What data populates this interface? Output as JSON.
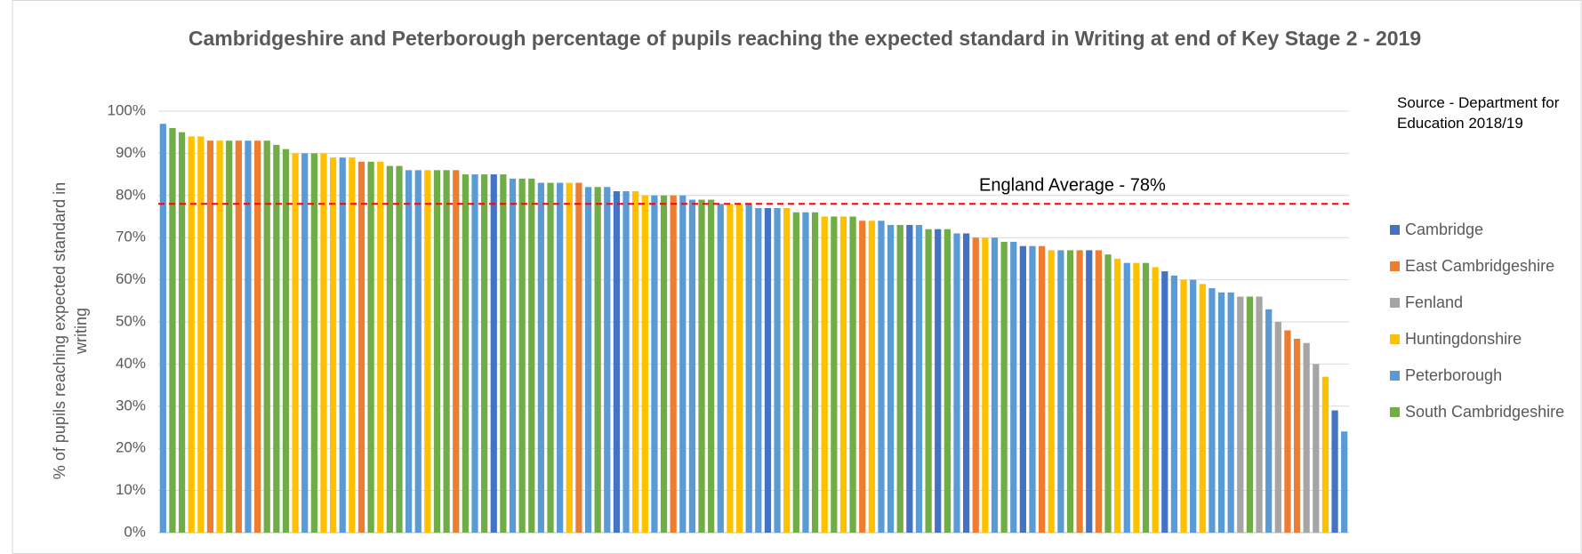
{
  "chart_data": {
    "type": "bar",
    "title": "Cambridgeshire and Peterborough percentage of pupils reaching the expected standard in Writing at end of Key Stage 2 - 2019",
    "y_label": "% of pupils reaching expected standard in writing",
    "annotation": "Source - Department for Education 2018/19",
    "reference_line": {
      "value": 78,
      "label": "England Average - 78%",
      "color": "#ff0000"
    },
    "ylim": [
      0,
      100
    ],
    "yticks": [
      {
        "value": 0,
        "label": "0%"
      },
      {
        "value": 10,
        "label": "10%"
      },
      {
        "value": 20,
        "label": "20%"
      },
      {
        "value": 30,
        "label": "30%"
      },
      {
        "value": 40,
        "label": "40%"
      },
      {
        "value": 50,
        "label": "50%"
      },
      {
        "value": 60,
        "label": "60%"
      },
      {
        "value": 70,
        "label": "70%"
      },
      {
        "value": 80,
        "label": "80%"
      },
      {
        "value": 90,
        "label": "90%"
      },
      {
        "value": 100,
        "label": "100%"
      }
    ],
    "grid": true,
    "legend": "right",
    "categories": [
      null,
      null,
      null,
      null,
      null,
      null,
      null,
      null,
      null,
      null,
      null,
      null,
      null,
      null,
      null,
      null,
      null,
      null,
      null,
      null,
      null,
      null,
      null,
      null,
      null,
      null,
      null,
      null,
      null,
      null,
      null,
      null,
      null,
      null,
      null,
      null,
      null,
      null,
      null,
      null,
      null,
      null,
      null,
      null,
      null,
      null,
      null,
      null,
      null,
      null,
      null,
      null,
      null,
      null,
      null,
      null,
      null,
      null,
      null,
      null,
      null,
      null,
      null,
      null,
      null,
      null,
      null,
      null,
      null,
      null,
      null,
      null,
      null,
      null,
      null,
      null,
      null,
      null,
      null,
      null,
      null,
      null,
      null,
      null,
      null,
      null,
      null,
      null,
      null,
      null,
      null,
      null,
      null,
      null,
      null,
      null,
      null,
      null,
      null,
      null,
      null,
      null,
      null,
      null,
      null,
      null,
      null,
      null,
      null,
      null,
      null,
      null,
      null,
      null,
      null,
      null,
      null,
      null,
      null,
      null,
      null,
      null,
      null,
      null,
      null,
      null
    ],
    "series": [
      {
        "name": "Cambridge",
        "color": "#4472c4",
        "values": [
          null,
          null,
          null,
          null,
          null,
          null,
          null,
          null,
          null,
          null,
          null,
          null,
          null,
          null,
          null,
          null,
          null,
          null,
          null,
          null,
          null,
          null,
          null,
          null,
          null,
          null,
          null,
          null,
          null,
          null,
          null,
          null,
          null,
          null,
          null,
          85,
          null,
          null,
          null,
          null,
          null,
          null,
          null,
          null,
          null,
          null,
          null,
          null,
          81,
          null,
          null,
          null,
          null,
          null,
          null,
          null,
          null,
          null,
          null,
          null,
          null,
          null,
          null,
          null,
          77,
          null,
          null,
          null,
          null,
          null,
          null,
          null,
          null,
          null,
          null,
          null,
          null,
          null,
          null,
          73,
          null,
          null,
          72,
          null,
          null,
          71,
          null,
          null,
          null,
          null,
          null,
          68,
          null,
          null,
          null,
          null,
          null,
          null,
          67,
          null,
          null,
          null,
          null,
          null,
          null,
          null,
          62,
          null,
          null,
          null,
          null,
          null,
          null,
          null,
          null,
          null,
          null,
          null,
          null,
          null,
          null,
          null,
          null,
          null,
          29,
          null
        ]
      },
      {
        "name": "East Cambridgeshire",
        "color": "#ed7d31",
        "values": [
          null,
          null,
          null,
          null,
          null,
          93,
          null,
          null,
          93,
          null,
          93,
          null,
          null,
          null,
          null,
          null,
          null,
          null,
          null,
          null,
          null,
          88,
          null,
          null,
          null,
          null,
          null,
          null,
          null,
          null,
          null,
          86,
          null,
          null,
          null,
          null,
          null,
          null,
          null,
          null,
          null,
          null,
          null,
          null,
          83,
          null,
          null,
          null,
          null,
          null,
          null,
          null,
          null,
          null,
          80,
          null,
          null,
          null,
          null,
          null,
          null,
          null,
          null,
          null,
          null,
          null,
          null,
          null,
          null,
          null,
          null,
          null,
          null,
          null,
          74,
          null,
          null,
          null,
          null,
          null,
          null,
          null,
          null,
          null,
          null,
          null,
          70,
          null,
          null,
          null,
          null,
          null,
          null,
          68,
          null,
          null,
          null,
          67,
          null,
          67,
          null,
          null,
          null,
          null,
          null,
          null,
          null,
          null,
          null,
          null,
          null,
          null,
          null,
          null,
          null,
          null,
          null,
          null,
          null,
          48,
          46,
          null,
          null,
          null,
          null,
          null
        ]
      },
      {
        "name": "Fenland",
        "color": "#a5a5a5",
        "values": [
          null,
          null,
          null,
          null,
          null,
          null,
          null,
          null,
          null,
          null,
          null,
          null,
          null,
          null,
          null,
          null,
          null,
          null,
          null,
          null,
          null,
          null,
          null,
          null,
          null,
          null,
          null,
          null,
          null,
          null,
          null,
          null,
          null,
          null,
          null,
          null,
          null,
          null,
          null,
          null,
          null,
          null,
          null,
          null,
          null,
          null,
          null,
          null,
          null,
          null,
          null,
          null,
          null,
          null,
          null,
          null,
          null,
          null,
          null,
          null,
          null,
          null,
          null,
          null,
          null,
          null,
          null,
          null,
          null,
          null,
          null,
          null,
          null,
          null,
          null,
          null,
          null,
          null,
          null,
          null,
          null,
          null,
          null,
          null,
          null,
          null,
          null,
          null,
          null,
          null,
          null,
          null,
          null,
          null,
          null,
          null,
          null,
          null,
          null,
          null,
          null,
          null,
          null,
          null,
          null,
          null,
          null,
          null,
          null,
          null,
          null,
          null,
          null,
          null,
          56,
          null,
          56,
          null,
          50,
          null,
          null,
          45,
          40,
          null,
          null,
          null
        ]
      },
      {
        "name": "Huntingdonshire",
        "color": "#ffc000",
        "values": [
          null,
          null,
          null,
          94,
          94,
          null,
          93,
          null,
          null,
          null,
          null,
          null,
          null,
          null,
          90,
          null,
          null,
          90,
          89,
          null,
          89,
          null,
          null,
          88,
          null,
          null,
          null,
          null,
          86,
          null,
          null,
          null,
          null,
          null,
          null,
          null,
          null,
          null,
          null,
          null,
          null,
          null,
          null,
          83,
          null,
          null,
          null,
          null,
          null,
          null,
          81,
          80,
          null,
          null,
          null,
          null,
          null,
          null,
          null,
          null,
          78,
          78,
          null,
          null,
          null,
          null,
          77,
          null,
          null,
          null,
          75,
          null,
          75,
          null,
          null,
          74,
          null,
          null,
          null,
          null,
          null,
          null,
          null,
          null,
          null,
          null,
          null,
          70,
          null,
          null,
          null,
          null,
          null,
          null,
          67,
          null,
          null,
          null,
          null,
          null,
          null,
          65,
          null,
          64,
          null,
          63,
          null,
          null,
          60,
          null,
          59,
          null,
          null,
          null,
          null,
          null,
          null,
          null,
          null,
          null,
          null,
          null,
          null,
          37,
          null,
          null
        ]
      },
      {
        "name": "Peterborough",
        "color": "#5b9bd5",
        "values": [
          97,
          null,
          null,
          null,
          null,
          null,
          null,
          null,
          null,
          93,
          null,
          null,
          null,
          null,
          null,
          90,
          null,
          null,
          null,
          89,
          null,
          null,
          null,
          null,
          null,
          null,
          86,
          86,
          null,
          null,
          null,
          null,
          null,
          85,
          null,
          null,
          null,
          84,
          null,
          null,
          83,
          null,
          83,
          null,
          null,
          82,
          null,
          82,
          null,
          81,
          null,
          null,
          80,
          null,
          null,
          80,
          79,
          null,
          null,
          78,
          null,
          null,
          78,
          77,
          null,
          77,
          null,
          null,
          76,
          null,
          null,
          null,
          null,
          null,
          null,
          null,
          74,
          73,
          null,
          null,
          73,
          null,
          null,
          null,
          71,
          null,
          null,
          null,
          70,
          null,
          69,
          null,
          68,
          null,
          null,
          67,
          null,
          null,
          null,
          null,
          null,
          null,
          64,
          null,
          null,
          null,
          null,
          61,
          null,
          60,
          null,
          58,
          57,
          57,
          null,
          null,
          null,
          53,
          null,
          null,
          null,
          null,
          null,
          null,
          null,
          24
        ]
      },
      {
        "name": "South Cambridgeshire",
        "color": "#70ad47",
        "values": [
          null,
          96,
          95,
          null,
          null,
          null,
          null,
          93,
          null,
          null,
          null,
          93,
          92,
          91,
          null,
          null,
          90,
          null,
          null,
          null,
          null,
          null,
          88,
          null,
          87,
          87,
          null,
          null,
          null,
          86,
          86,
          null,
          85,
          null,
          85,
          null,
          85,
          null,
          84,
          84,
          null,
          83,
          null,
          null,
          null,
          null,
          82,
          null,
          null,
          null,
          null,
          null,
          null,
          80,
          null,
          null,
          null,
          79,
          79,
          null,
          null,
          null,
          null,
          null,
          null,
          null,
          null,
          76,
          null,
          76,
          null,
          75,
          null,
          75,
          null,
          null,
          null,
          null,
          73,
          null,
          null,
          72,
          null,
          72,
          null,
          null,
          null,
          null,
          null,
          69,
          null,
          null,
          null,
          null,
          null,
          null,
          67,
          null,
          null,
          null,
          66,
          null,
          null,
          null,
          64,
          null,
          null,
          null,
          null,
          null,
          null,
          null,
          null,
          null,
          null,
          56,
          null,
          null,
          null,
          null,
          null,
          null,
          null,
          null,
          null,
          null
        ]
      }
    ]
  }
}
